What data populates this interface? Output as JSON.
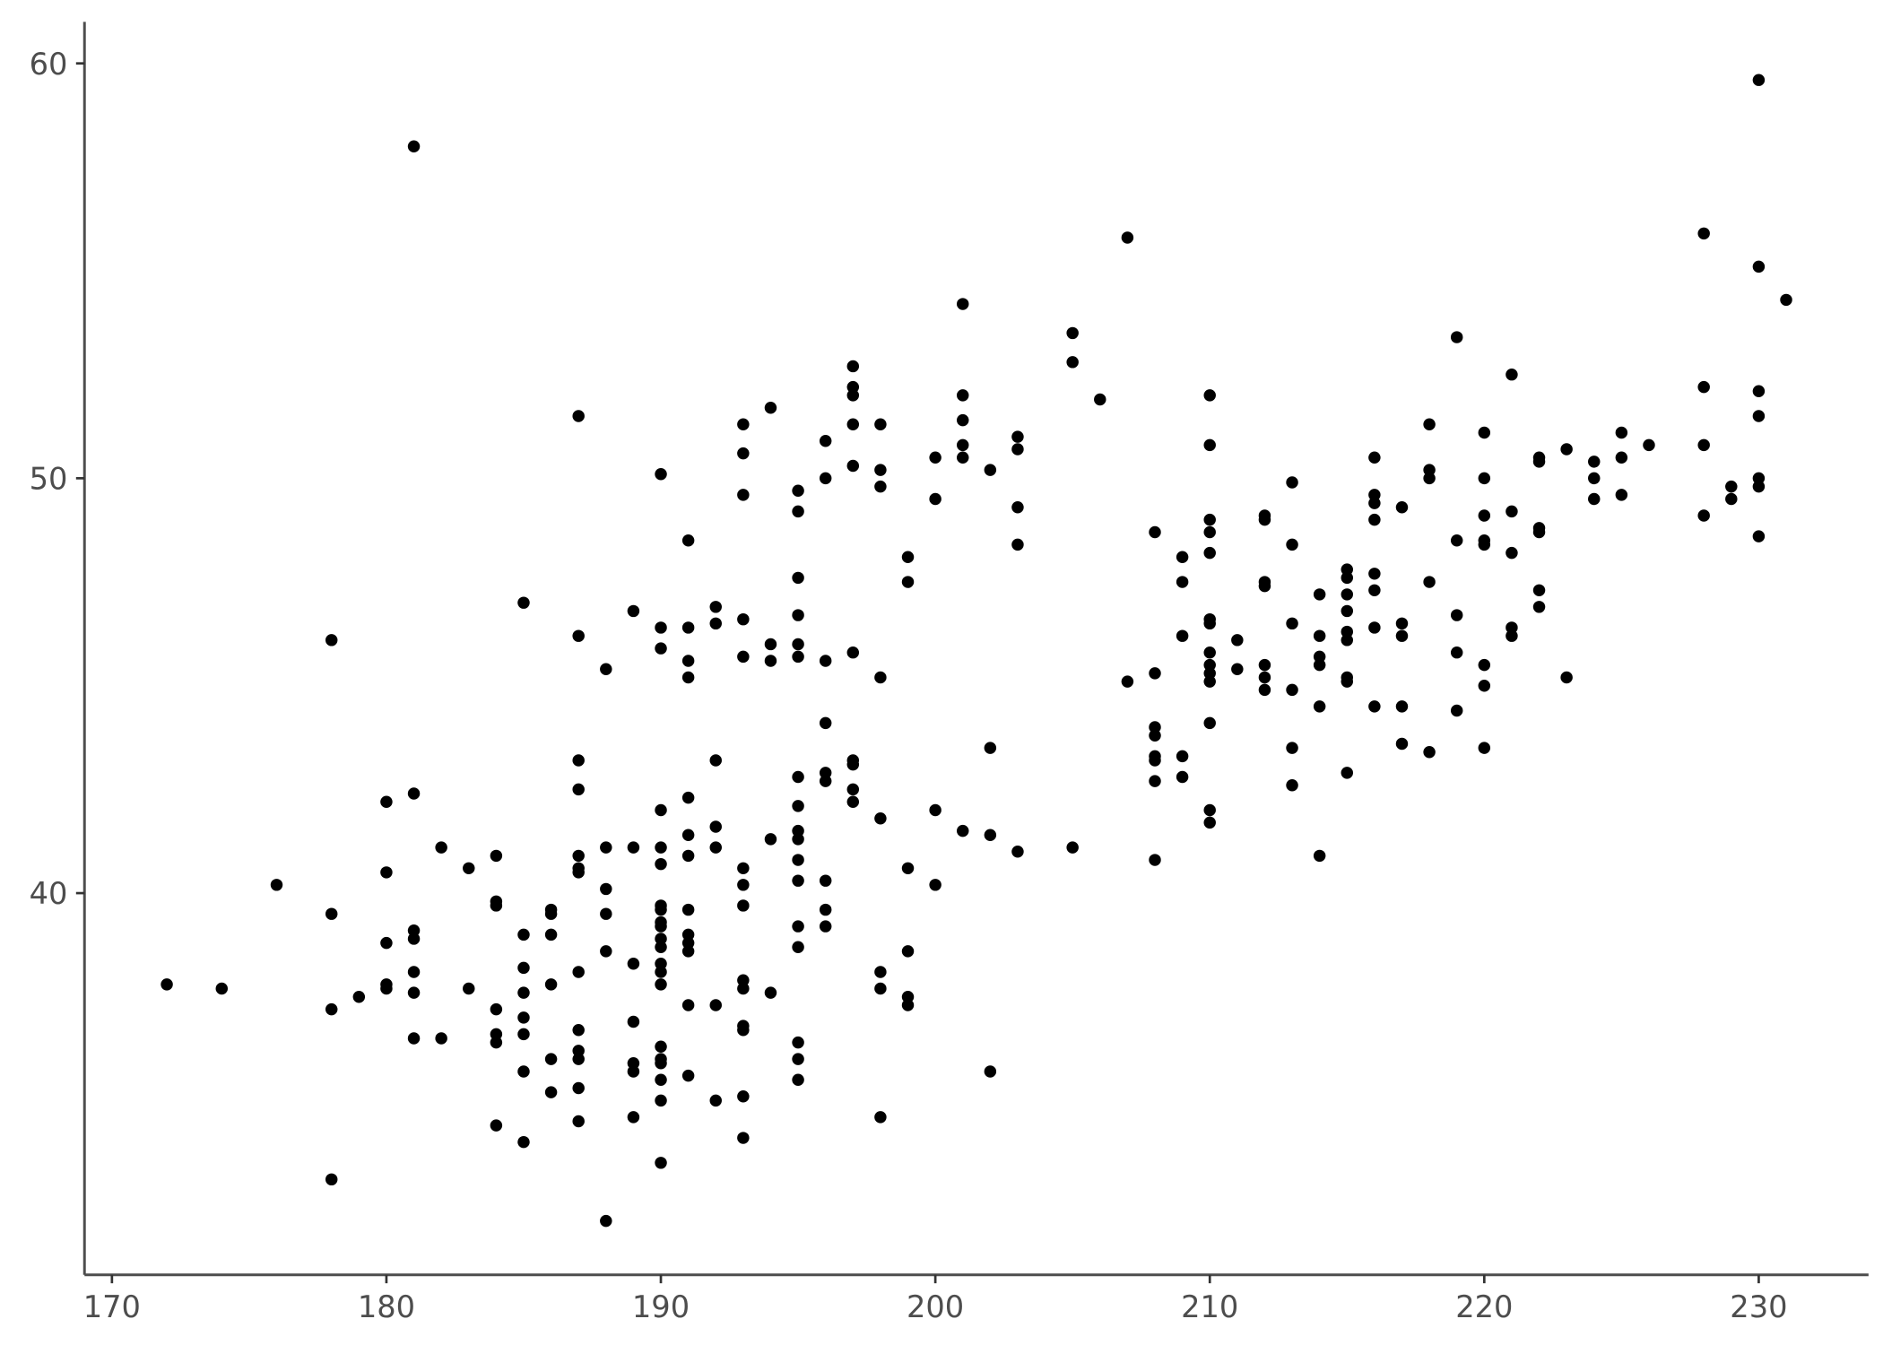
{
  "chart_data": {
    "type": "scatter",
    "title": "",
    "xlabel": "",
    "ylabel": "",
    "xlim": [
      169,
      234
    ],
    "ylim": [
      30.8,
      61
    ],
    "xticks": [
      170,
      180,
      190,
      200,
      210,
      220,
      230
    ],
    "yticks": [
      40,
      50,
      60
    ],
    "grid": false,
    "point_color": "#000000",
    "axis_color": "#4d4d4d",
    "points": [
      [
        172,
        37.8
      ],
      [
        174,
        37.7
      ],
      [
        176,
        40.2
      ],
      [
        178,
        46.1
      ],
      [
        178,
        39.5
      ],
      [
        178,
        37.2
      ],
      [
        178,
        33.1
      ],
      [
        179,
        37.5
      ],
      [
        180,
        42.2
      ],
      [
        180,
        40.5
      ],
      [
        180,
        38.8
      ],
      [
        180,
        37.8
      ],
      [
        180,
        37.7
      ],
      [
        181,
        58.0
      ],
      [
        181,
        42.4
      ],
      [
        181,
        39.1
      ],
      [
        181,
        38.9
      ],
      [
        181,
        38.1
      ],
      [
        181,
        37.6
      ],
      [
        181,
        36.5
      ],
      [
        182,
        41.1
      ],
      [
        182,
        36.5
      ],
      [
        183,
        40.6
      ],
      [
        183,
        37.7
      ],
      [
        184,
        40.9
      ],
      [
        184,
        39.8
      ],
      [
        184,
        39.7
      ],
      [
        184,
        37.2
      ],
      [
        184,
        36.6
      ],
      [
        184,
        36.4
      ],
      [
        184,
        34.4
      ],
      [
        185,
        47.0
      ],
      [
        185,
        39.0
      ],
      [
        185,
        38.2
      ],
      [
        185,
        37.6
      ],
      [
        185,
        37.0
      ],
      [
        185,
        36.6
      ],
      [
        185,
        35.7
      ],
      [
        185,
        34.0
      ],
      [
        186,
        39.6
      ],
      [
        186,
        39.5
      ],
      [
        186,
        39.0
      ],
      [
        186,
        37.8
      ],
      [
        186,
        36.0
      ],
      [
        186,
        35.2
      ],
      [
        187,
        51.5
      ],
      [
        187,
        46.2
      ],
      [
        187,
        43.2
      ],
      [
        187,
        42.5
      ],
      [
        187,
        40.9
      ],
      [
        187,
        40.6
      ],
      [
        187,
        40.5
      ],
      [
        187,
        38.1
      ],
      [
        187,
        36.7
      ],
      [
        187,
        36.2
      ],
      [
        187,
        36.0
      ],
      [
        187,
        35.3
      ],
      [
        187,
        34.5
      ],
      [
        188,
        45.4
      ],
      [
        188,
        41.1
      ],
      [
        188,
        40.1
      ],
      [
        188,
        39.5
      ],
      [
        188,
        38.6
      ],
      [
        188,
        32.1
      ],
      [
        189,
        46.8
      ],
      [
        189,
        41.1
      ],
      [
        189,
        38.3
      ],
      [
        189,
        36.9
      ],
      [
        189,
        35.9
      ],
      [
        189,
        35.7
      ],
      [
        189,
        34.6
      ],
      [
        190,
        50.1
      ],
      [
        190,
        46.4
      ],
      [
        190,
        45.9
      ],
      [
        190,
        42.0
      ],
      [
        190,
        41.1
      ],
      [
        190,
        40.7
      ],
      [
        190,
        39.7
      ],
      [
        190,
        39.6
      ],
      [
        190,
        39.3
      ],
      [
        190,
        39.2
      ],
      [
        190,
        38.9
      ],
      [
        190,
        38.7
      ],
      [
        190,
        38.3
      ],
      [
        190,
        38.1
      ],
      [
        190,
        37.8
      ],
      [
        190,
        36.3
      ],
      [
        190,
        36.0
      ],
      [
        190,
        35.9
      ],
      [
        190,
        35.5
      ],
      [
        190,
        35.0
      ],
      [
        190,
        33.5
      ],
      [
        191,
        48.5
      ],
      [
        191,
        46.4
      ],
      [
        191,
        45.6
      ],
      [
        191,
        45.2
      ],
      [
        191,
        42.3
      ],
      [
        191,
        41.4
      ],
      [
        191,
        40.9
      ],
      [
        191,
        39.6
      ],
      [
        191,
        39.0
      ],
      [
        191,
        38.8
      ],
      [
        191,
        38.6
      ],
      [
        191,
        37.3
      ],
      [
        191,
        35.6
      ],
      [
        192,
        46.9
      ],
      [
        192,
        46.5
      ],
      [
        192,
        43.2
      ],
      [
        192,
        41.6
      ],
      [
        192,
        41.1
      ],
      [
        192,
        37.3
      ],
      [
        192,
        35.0
      ],
      [
        193,
        51.3
      ],
      [
        193,
        50.6
      ],
      [
        193,
        49.6
      ],
      [
        193,
        46.6
      ],
      [
        193,
        45.7
      ],
      [
        193,
        40.6
      ],
      [
        193,
        40.2
      ],
      [
        193,
        39.7
      ],
      [
        193,
        37.9
      ],
      [
        193,
        37.7
      ],
      [
        193,
        36.8
      ],
      [
        193,
        36.7
      ],
      [
        193,
        35.1
      ],
      [
        193,
        34.1
      ],
      [
        194,
        51.7
      ],
      [
        194,
        46.0
      ],
      [
        194,
        45.6
      ],
      [
        194,
        41.3
      ],
      [
        194,
        37.6
      ],
      [
        195,
        49.7
      ],
      [
        195,
        49.2
      ],
      [
        195,
        47.6
      ],
      [
        195,
        46.7
      ],
      [
        195,
        46.0
      ],
      [
        195,
        45.7
      ],
      [
        195,
        42.8
      ],
      [
        195,
        42.1
      ],
      [
        195,
        41.5
      ],
      [
        195,
        41.3
      ],
      [
        195,
        40.8
      ],
      [
        195,
        40.3
      ],
      [
        195,
        39.2
      ],
      [
        195,
        38.7
      ],
      [
        195,
        36.4
      ],
      [
        195,
        36.0
      ],
      [
        195,
        35.5
      ],
      [
        196,
        50.9
      ],
      [
        196,
        50.0
      ],
      [
        196,
        45.6
      ],
      [
        196,
        44.1
      ],
      [
        196,
        42.9
      ],
      [
        196,
        42.7
      ],
      [
        196,
        40.3
      ],
      [
        196,
        39.6
      ],
      [
        196,
        39.2
      ],
      [
        197,
        52.7
      ],
      [
        197,
        52.2
      ],
      [
        197,
        52.0
      ],
      [
        197,
        51.3
      ],
      [
        197,
        50.3
      ],
      [
        197,
        45.8
      ],
      [
        197,
        43.2
      ],
      [
        197,
        43.1
      ],
      [
        197,
        42.5
      ],
      [
        197,
        42.2
      ],
      [
        198,
        51.3
      ],
      [
        198,
        50.2
      ],
      [
        198,
        49.8
      ],
      [
        198,
        45.2
      ],
      [
        198,
        41.8
      ],
      [
        198,
        38.1
      ],
      [
        198,
        37.7
      ],
      [
        198,
        34.6
      ],
      [
        199,
        48.1
      ],
      [
        199,
        47.5
      ],
      [
        199,
        40.6
      ],
      [
        199,
        38.6
      ],
      [
        199,
        37.5
      ],
      [
        199,
        37.3
      ],
      [
        200,
        50.5
      ],
      [
        200,
        49.5
      ],
      [
        200,
        42.0
      ],
      [
        200,
        40.2
      ],
      [
        201,
        54.2
      ],
      [
        201,
        52.0
      ],
      [
        201,
        51.4
      ],
      [
        201,
        50.8
      ],
      [
        201,
        50.5
      ],
      [
        201,
        41.5
      ],
      [
        202,
        50.2
      ],
      [
        202,
        43.5
      ],
      [
        202,
        41.4
      ],
      [
        202,
        35.7
      ],
      [
        203,
        51.0
      ],
      [
        203,
        50.7
      ],
      [
        203,
        49.3
      ],
      [
        203,
        48.4
      ],
      [
        203,
        41.0
      ],
      [
        205,
        53.5
      ],
      [
        205,
        52.8
      ],
      [
        205,
        41.1
      ],
      [
        206,
        51.9
      ],
      [
        207,
        55.8
      ],
      [
        207,
        45.1
      ],
      [
        208,
        48.7
      ],
      [
        208,
        45.3
      ],
      [
        208,
        44.0
      ],
      [
        208,
        43.8
      ],
      [
        208,
        43.3
      ],
      [
        208,
        43.2
      ],
      [
        208,
        42.7
      ],
      [
        208,
        40.8
      ],
      [
        209,
        48.1
      ],
      [
        209,
        47.5
      ],
      [
        209,
        46.2
      ],
      [
        209,
        43.3
      ],
      [
        209,
        42.8
      ],
      [
        210,
        52.0
      ],
      [
        210,
        50.8
      ],
      [
        210,
        49.0
      ],
      [
        210,
        48.7
      ],
      [
        210,
        48.2
      ],
      [
        210,
        46.6
      ],
      [
        210,
        46.5
      ],
      [
        210,
        45.8
      ],
      [
        210,
        45.5
      ],
      [
        210,
        45.3
      ],
      [
        210,
        45.1
      ],
      [
        210,
        44.1
      ],
      [
        210,
        42.0
      ],
      [
        210,
        41.7
      ],
      [
        211,
        46.1
      ],
      [
        211,
        45.4
      ],
      [
        212,
        49.1
      ],
      [
        212,
        49.0
      ],
      [
        212,
        47.5
      ],
      [
        212,
        47.4
      ],
      [
        212,
        45.5
      ],
      [
        212,
        45.2
      ],
      [
        212,
        44.9
      ],
      [
        213,
        49.9
      ],
      [
        213,
        48.4
      ],
      [
        213,
        46.5
      ],
      [
        213,
        44.9
      ],
      [
        213,
        43.5
      ],
      [
        213,
        42.6
      ],
      [
        214,
        47.2
      ],
      [
        214,
        46.2
      ],
      [
        214,
        45.7
      ],
      [
        214,
        45.5
      ],
      [
        214,
        44.5
      ],
      [
        214,
        40.9
      ],
      [
        215,
        47.8
      ],
      [
        215,
        47.6
      ],
      [
        215,
        47.2
      ],
      [
        215,
        46.8
      ],
      [
        215,
        46.3
      ],
      [
        215,
        46.1
      ],
      [
        215,
        45.2
      ],
      [
        215,
        45.1
      ],
      [
        215,
        42.9
      ],
      [
        216,
        50.5
      ],
      [
        216,
        49.6
      ],
      [
        216,
        49.4
      ],
      [
        216,
        49.0
      ],
      [
        216,
        47.7
      ],
      [
        216,
        47.3
      ],
      [
        216,
        46.4
      ],
      [
        216,
        44.5
      ],
      [
        217,
        49.3
      ],
      [
        217,
        46.5
      ],
      [
        217,
        46.2
      ],
      [
        217,
        44.5
      ],
      [
        217,
        43.6
      ],
      [
        218,
        51.3
      ],
      [
        218,
        50.2
      ],
      [
        218,
        50.0
      ],
      [
        218,
        47.5
      ],
      [
        218,
        43.4
      ],
      [
        219,
        53.4
      ],
      [
        219,
        48.5
      ],
      [
        219,
        46.7
      ],
      [
        219,
        45.8
      ],
      [
        219,
        44.4
      ],
      [
        220,
        51.1
      ],
      [
        220,
        50.0
      ],
      [
        220,
        49.1
      ],
      [
        220,
        48.5
      ],
      [
        220,
        48.4
      ],
      [
        220,
        45.5
      ],
      [
        220,
        45.0
      ],
      [
        220,
        43.5
      ],
      [
        221,
        52.5
      ],
      [
        221,
        49.2
      ],
      [
        221,
        48.2
      ],
      [
        221,
        46.4
      ],
      [
        221,
        46.2
      ],
      [
        222,
        50.5
      ],
      [
        222,
        50.4
      ],
      [
        222,
        48.8
      ],
      [
        222,
        48.7
      ],
      [
        222,
        47.3
      ],
      [
        222,
        46.9
      ],
      [
        223,
        50.7
      ],
      [
        223,
        45.2
      ],
      [
        224,
        50.4
      ],
      [
        224,
        50.0
      ],
      [
        224,
        49.5
      ],
      [
        225,
        51.1
      ],
      [
        225,
        50.5
      ],
      [
        225,
        49.6
      ],
      [
        226,
        50.8
      ],
      [
        228,
        55.9
      ],
      [
        228,
        52.2
      ],
      [
        228,
        50.8
      ],
      [
        228,
        49.1
      ],
      [
        229,
        49.8
      ],
      [
        229,
        49.5
      ],
      [
        230,
        59.6
      ],
      [
        230,
        55.1
      ],
      [
        230,
        52.1
      ],
      [
        230,
        51.5
      ],
      [
        230,
        50.0
      ],
      [
        230,
        49.8
      ],
      [
        230,
        48.6
      ],
      [
        231,
        54.3
      ]
    ]
  }
}
